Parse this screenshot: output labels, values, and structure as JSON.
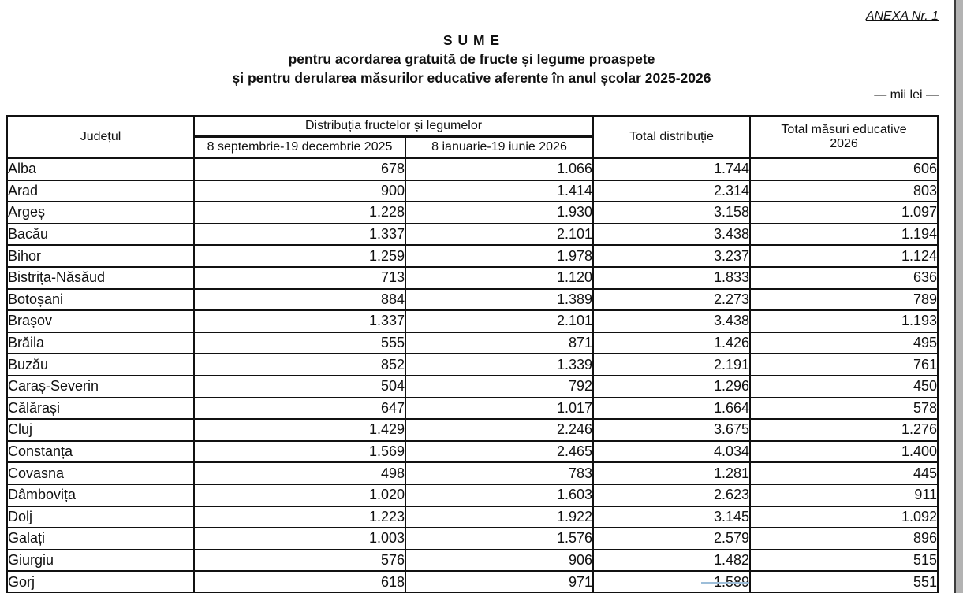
{
  "page": {
    "annex_label": "ANEXA Nr. 1",
    "title": "S U M E",
    "subtitle_line1": "pentru acordarea gratuită de fructe și legume proaspete",
    "subtitle_line2": "și pentru derularea măsurilor educative aferente în anul școlar 2025-2026",
    "unit_note": "— mii lei —"
  },
  "colors": {
    "text": "#111111",
    "table_border": "#111111",
    "strike_line": "#9dbed9",
    "viewer_gutter": "#b3b3b3",
    "page_edge_line": "#3d3d3d"
  },
  "table": {
    "headers": {
      "county": "Județul",
      "distribution_group": "Distribuția fructelor și legumelor",
      "period1": "8 septembrie-19 decembrie 2025",
      "period2": "8 ianuarie-19 iunie 2026",
      "total_distribution": "Total distribuție",
      "total_educational": "Total măsuri educative 2026"
    },
    "rows": [
      {
        "county": "Alba",
        "period1": "678",
        "period2": "1.066",
        "total": "1.744",
        "educational": "606"
      },
      {
        "county": "Arad",
        "period1": "900",
        "period2": "1.414",
        "total": "2.314",
        "educational": "803"
      },
      {
        "county": "Argeș",
        "period1": "1.228",
        "period2": "1.930",
        "total": "3.158",
        "educational": "1.097"
      },
      {
        "county": "Bacău",
        "period1": "1.337",
        "period2": "2.101",
        "total": "3.438",
        "educational": "1.194"
      },
      {
        "county": "Bihor",
        "period1": "1.259",
        "period2": "1.978",
        "total": "3.237",
        "educational": "1.124"
      },
      {
        "county": "Bistrița-Năsăud",
        "period1": "713",
        "period2": "1.120",
        "total": "1.833",
        "educational": "636"
      },
      {
        "county": "Botoșani",
        "period1": "884",
        "period2": "1.389",
        "total": "2.273",
        "educational": "789"
      },
      {
        "county": "Brașov",
        "period1": "1.337",
        "period2": "2.101",
        "total": "3.438",
        "educational": "1.193"
      },
      {
        "county": "Brăila",
        "period1": "555",
        "period2": "871",
        "total": "1.426",
        "educational": "495"
      },
      {
        "county": "Buzău",
        "period1": "852",
        "period2": "1.339",
        "total": "2.191",
        "educational": "761"
      },
      {
        "county": "Caraș-Severin",
        "period1": "504",
        "period2": "792",
        "total": "1.296",
        "educational": "450"
      },
      {
        "county": "Călărași",
        "period1": "647",
        "period2": "1.017",
        "total": "1.664",
        "educational": "578"
      },
      {
        "county": "Cluj",
        "period1": "1.429",
        "period2": "2.246",
        "total": "3.675",
        "educational": "1.276"
      },
      {
        "county": "Constanța",
        "period1": "1.569",
        "period2": "2.465",
        "total": "4.034",
        "educational": "1.400"
      },
      {
        "county": "Covasna",
        "period1": "498",
        "period2": "783",
        "total": "1.281",
        "educational": "445"
      },
      {
        "county": "Dâmbovița",
        "period1": "1.020",
        "period2": "1.603",
        "total": "2.623",
        "educational": "911"
      },
      {
        "county": "Dolj",
        "period1": "1.223",
        "period2": "1.922",
        "total": "3.145",
        "educational": "1.092"
      },
      {
        "county": "Galați",
        "period1": "1.003",
        "period2": "1.576",
        "total": "2.579",
        "educational": "896"
      },
      {
        "county": "Giurgiu",
        "period1": "576",
        "period2": "906",
        "total": "1.482",
        "educational": "515"
      },
      {
        "county": "Gorj",
        "period1": "618",
        "period2": "971",
        "total": "1.589",
        "educational": "551",
        "total_strikethrough": true
      }
    ]
  }
}
